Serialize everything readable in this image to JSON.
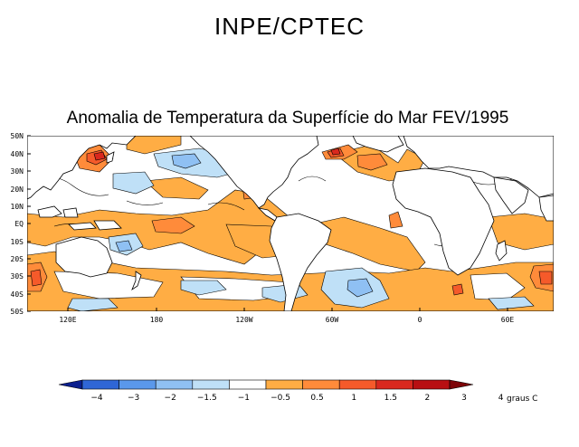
{
  "header": {
    "organization": "INPE/CPTEC"
  },
  "map": {
    "title": "Anomalia de Temperatura da Superfície do Mar FEV/1995",
    "lat_labels": [
      "50N",
      "40N",
      "30N",
      "20N",
      "10N",
      "EQ",
      "10S",
      "20S",
      "30S",
      "40S",
      "50S"
    ],
    "lon_labels": [
      "120E",
      "180",
      "120W",
      "60W",
      "0",
      "60E"
    ]
  },
  "colorbar": {
    "labels": [
      "−4",
      "−3",
      "−2",
      "−1.5",
      "−1",
      "−0.5",
      "0.5",
      "1",
      "1.5",
      "2",
      "3",
      "4"
    ],
    "units": "graus C",
    "colors": [
      "#0b1f8e",
      "#2f66d6",
      "#5a98eb",
      "#8fc0f3",
      "#bfe0f7",
      "#ffffff",
      "#ffad44",
      "#ff8b3a",
      "#f55a2a",
      "#d9281e",
      "#b80f12",
      "#7d0408"
    ]
  }
}
